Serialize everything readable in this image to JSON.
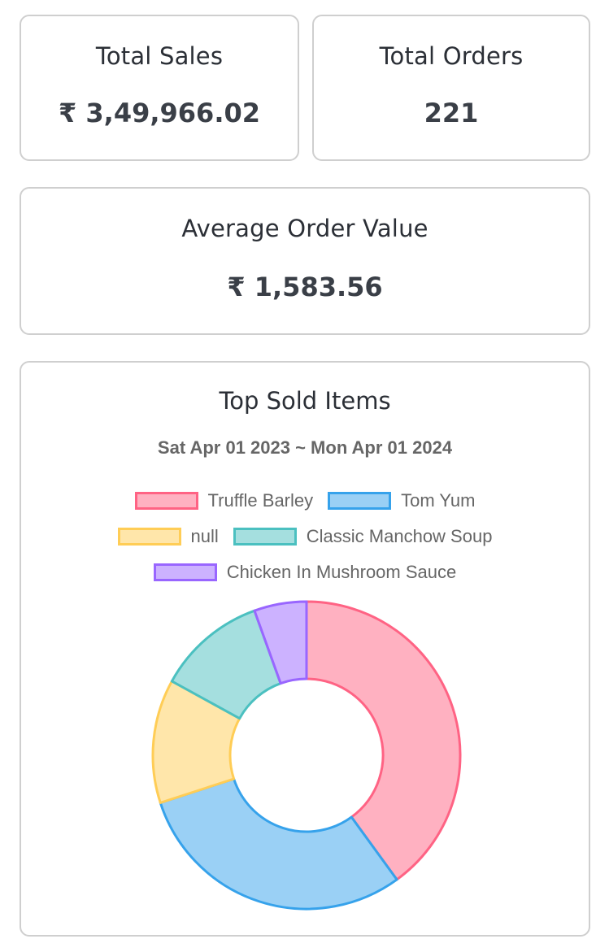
{
  "stats": {
    "total_sales": {
      "title": "Total Sales",
      "value": "₹ 3,49,966.02"
    },
    "total_orders": {
      "title": "Total Orders",
      "value": "221"
    },
    "average_order_value": {
      "title": "Average Order Value",
      "value": "₹ 1,583.56"
    }
  },
  "chart_data": {
    "type": "pie",
    "variant": "doughnut",
    "title": "Top Sold Items",
    "subtitle": "Sat Apr 01 2023 ~ Mon Apr 01 2024",
    "legend_position": "top",
    "categories": [
      "Truffle Barley",
      "Tom Yum",
      "null",
      "Classic Manchow Soup",
      "Chicken In Mushroom Sauce"
    ],
    "values": [
      40,
      30,
      13,
      11.5,
      5.5
    ],
    "fill_colors": [
      "#ffb1c1",
      "#9ad0f5",
      "#ffe6aa",
      "#a5dfdf",
      "#ccb2ff"
    ],
    "border_colors": [
      "#ff6384",
      "#36a2eb",
      "#ffcd56",
      "#4bc0c0",
      "#9966ff"
    ]
  }
}
